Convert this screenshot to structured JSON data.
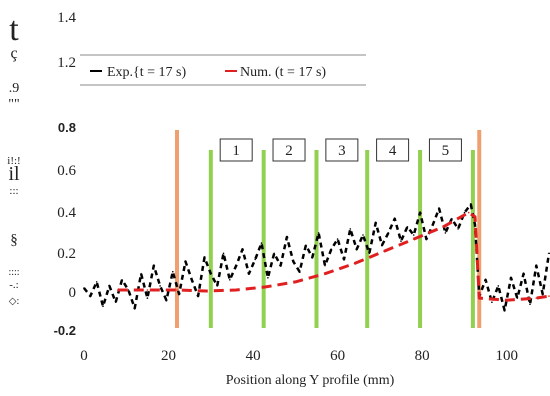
{
  "chart_data": {
    "type": "line",
    "xlabel": "Position along Y profile (mm)",
    "ylabel_fragments": [
      "t",
      "ç",
      ".9",
      "\"\"",
      "i!:!",
      "il",
      ":::",
      "§",
      "::::",
      "-.:",
      "◇:"
    ],
    "x_ticks": [
      "0",
      "20",
      "40",
      "60",
      "80",
      "100"
    ],
    "y_ticks": [
      "1.4",
      "1.2",
      "0.8",
      "0.6",
      "0.4",
      "0.2",
      "0",
      "-0.2"
    ],
    "xlim": [
      0,
      110
    ],
    "ylim": [
      -0.2,
      1.4
    ],
    "legend": {
      "placement": "top",
      "entries": [
        {
          "label": "Exp.{t = 17 s)",
          "style": "solid",
          "color": "#000000"
        },
        {
          "label": "Num. (t = 17 s)",
          "style": "dashed",
          "color": "#e02020"
        }
      ]
    },
    "vertical_lines": {
      "orange": {
        "color": "#f0a070",
        "x": [
          22,
          93.5
        ]
      },
      "green": {
        "color": "#92d050",
        "x": [
          30,
          42.5,
          55,
          67,
          79.5,
          92
        ]
      }
    },
    "zone_labels": [
      {
        "label": "1",
        "x": 36
      },
      {
        "label": "2",
        "x": 48.5
      },
      {
        "label": "3",
        "x": 61
      },
      {
        "label": "4",
        "x": 73
      },
      {
        "label": "5",
        "x": 85.5
      }
    ],
    "series": [
      {
        "name": "Exp.{t = 17 s)",
        "style": "dashed",
        "color": "#000000",
        "x": [
          0,
          1.5,
          3,
          4.5,
          6,
          7.5,
          9,
          10.5,
          12,
          13.5,
          15,
          16.5,
          18,
          19.5,
          21,
          22.5,
          24,
          25.5,
          27,
          28.5,
          30,
          31.5,
          33,
          34.5,
          36,
          37.5,
          39,
          40.5,
          42,
          43.5,
          45,
          46.5,
          48,
          49.5,
          51,
          52.5,
          54,
          55.5,
          57,
          58.5,
          60,
          61.5,
          63,
          64.5,
          66,
          67.5,
          69,
          70.5,
          72,
          73.5,
          75,
          76.5,
          78,
          79.5,
          81,
          82.5,
          84,
          85.5,
          87,
          88.5,
          90,
          91.5,
          92.5,
          93.5,
          95,
          96.5,
          98,
          99.5,
          101,
          102.5,
          104,
          105.5,
          107,
          108.5,
          110
        ],
        "y": [
          0.01,
          -0.03,
          0.04,
          -0.08,
          0.02,
          -0.06,
          0.05,
          0.0,
          -0.09,
          0.08,
          -0.04,
          0.12,
          0.02,
          -0.05,
          0.09,
          -0.02,
          0.14,
          0.05,
          -0.03,
          0.16,
          0.08,
          0.02,
          0.18,
          0.05,
          0.12,
          0.2,
          0.08,
          0.15,
          0.23,
          0.06,
          0.18,
          0.12,
          0.26,
          0.14,
          0.09,
          0.22,
          0.16,
          0.28,
          0.12,
          0.2,
          0.25,
          0.15,
          0.3,
          0.2,
          0.27,
          0.18,
          0.33,
          0.22,
          0.28,
          0.35,
          0.24,
          0.31,
          0.27,
          0.38,
          0.25,
          0.32,
          0.4,
          0.28,
          0.35,
          0.3,
          0.38,
          0.42,
          0.32,
          -0.03,
          0.05,
          -0.06,
          0.02,
          -0.1,
          0.06,
          -0.04,
          0.08,
          -0.07,
          0.12,
          -0.02,
          0.18
        ]
      },
      {
        "name": "Num. (t = 17 s)",
        "style": "dashed",
        "color": "#e02020",
        "x": [
          8,
          15,
          22,
          29,
          36,
          43,
          50,
          57,
          64,
          71,
          78,
          85,
          91,
          92.5,
          93.5,
          100,
          107,
          110
        ],
        "y": [
          0.0,
          0.0,
          0.0,
          -0.005,
          0.0,
          0.015,
          0.04,
          0.08,
          0.13,
          0.19,
          0.25,
          0.31,
          0.38,
          0.36,
          -0.04,
          -0.05,
          -0.04,
          -0.03
        ]
      }
    ]
  }
}
